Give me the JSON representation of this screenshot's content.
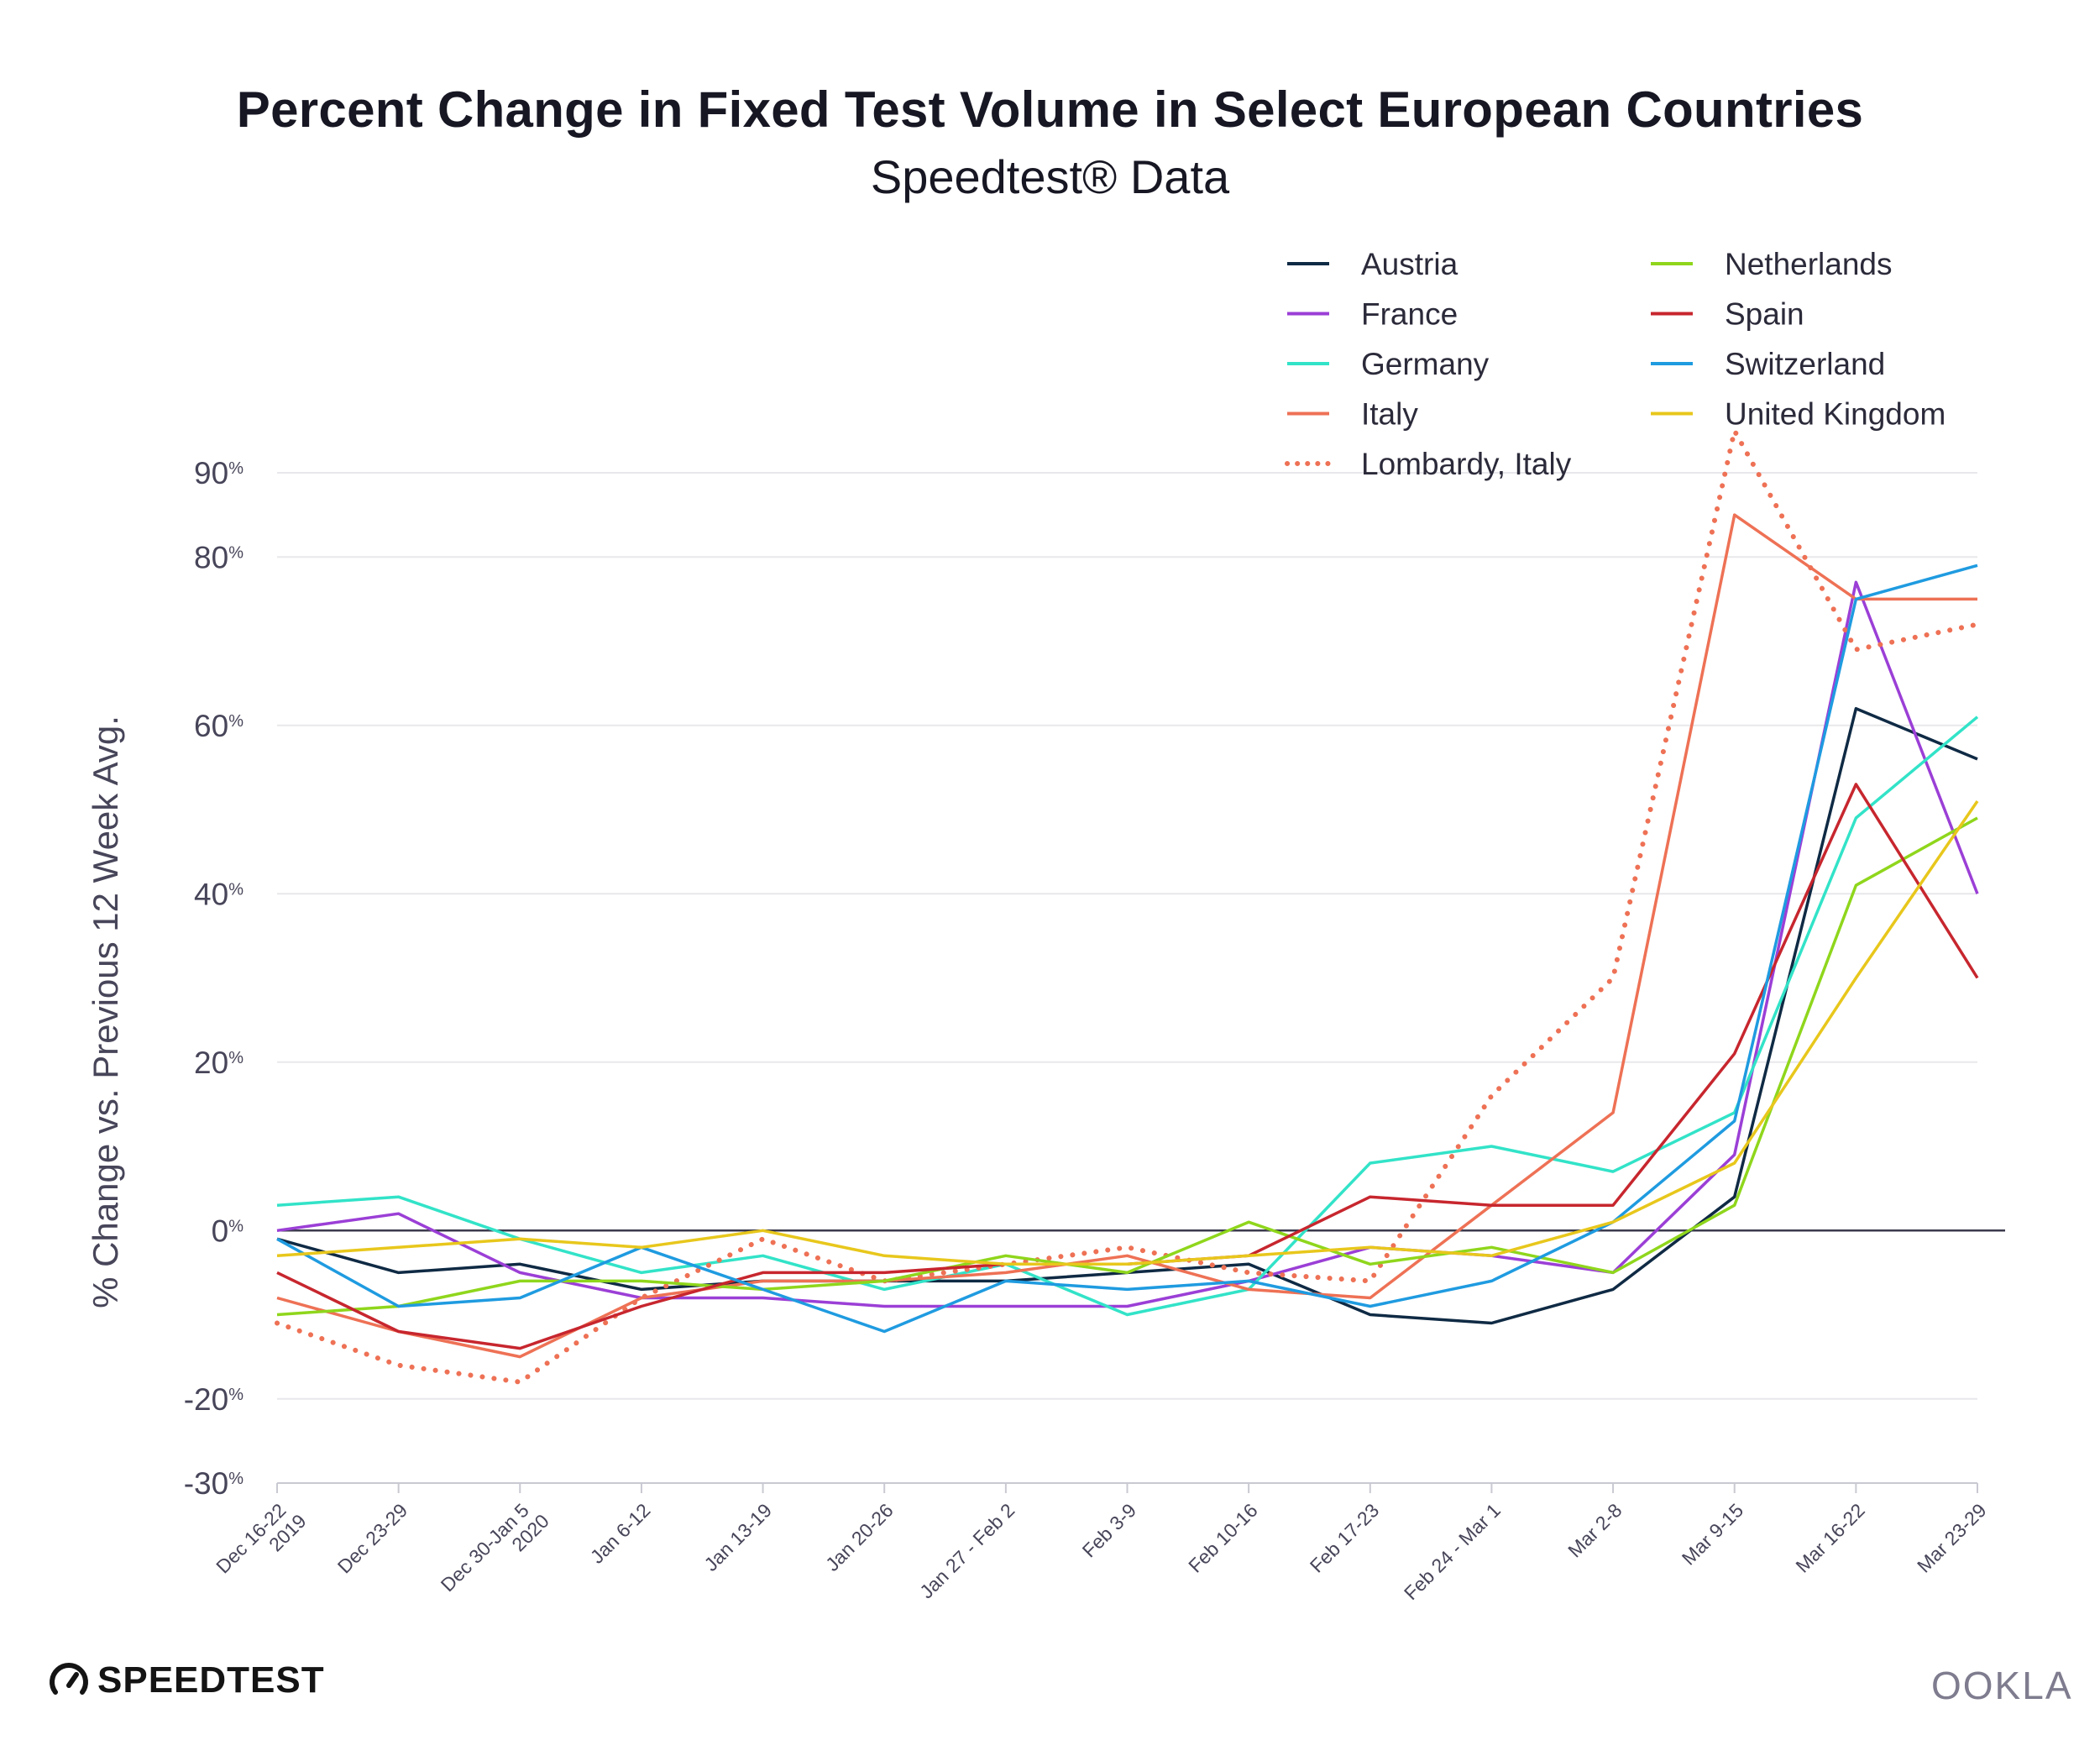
{
  "chart_data": {
    "type": "line",
    "title": "Percent Change in Fixed Test Volume in Select European Countries",
    "subtitle": "Speedtest® Data",
    "ylabel": "% Change vs. Previous 12 Week Avg.",
    "xlabel": "",
    "ylim": [
      -30,
      90
    ],
    "yticks": [
      90,
      80,
      60,
      40,
      20,
      0,
      -20,
      -30
    ],
    "grid": true,
    "legend_position": "top-right",
    "categories": [
      [
        "Dec 16-22",
        "2019"
      ],
      [
        "Dec 23-29"
      ],
      [
        "Dec 30-Jan 5",
        "2020"
      ],
      [
        "Jan 6-12"
      ],
      [
        "Jan 13-19"
      ],
      [
        "Jan 20-26"
      ],
      [
        "Jan 27 - Feb 2"
      ],
      [
        "Feb 3-9"
      ],
      [
        "Feb 10-16"
      ],
      [
        "Feb 17-23"
      ],
      [
        "Feb 24 - Mar 1"
      ],
      [
        "Mar 2-8"
      ],
      [
        "Mar 9-15"
      ],
      [
        "Mar 16-22"
      ],
      [
        "Mar 23-29"
      ]
    ],
    "series": [
      {
        "name": "Austria",
        "color": "#0f2a44",
        "style": "solid",
        "values": [
          -1,
          -5,
          -4,
          -7,
          -6,
          -6,
          -6,
          -5,
          -4,
          -10,
          -11,
          -7,
          4,
          62,
          56
        ]
      },
      {
        "name": "France",
        "color": "#9b3fd6",
        "style": "solid",
        "values": [
          0,
          2,
          -5,
          -8,
          -8,
          -9,
          -9,
          -9,
          -6,
          -2,
          -3,
          -5,
          9,
          77,
          40
        ]
      },
      {
        "name": "Germany",
        "color": "#32e3c8",
        "style": "solid",
        "values": [
          3,
          4,
          -1,
          -5,
          -3,
          -7,
          -4,
          -10,
          -7,
          8,
          10,
          7,
          14,
          49,
          61
        ]
      },
      {
        "name": "Italy",
        "color": "#ee7155",
        "style": "solid",
        "values": [
          -8,
          -12,
          -15,
          -8,
          -6,
          -6,
          -5,
          -3,
          -7,
          -8,
          3,
          14,
          85,
          75,
          75
        ]
      },
      {
        "name": "Lombardy, Italy",
        "color": "#ee7155",
        "style": "dotted",
        "values": [
          -11,
          -16,
          -18,
          -8,
          -1,
          -6,
          -4,
          -2,
          -5,
          -6,
          16,
          30,
          95,
          69,
          72
        ]
      },
      {
        "name": "Netherlands",
        "color": "#8fd61c",
        "style": "solid",
        "values": [
          -10,
          -9,
          -6,
          -6,
          -7,
          -6,
          -3,
          -5,
          1,
          -4,
          -2,
          -5,
          3,
          41,
          49
        ]
      },
      {
        "name": "Spain",
        "color": "#c7262e",
        "style": "solid",
        "values": [
          -5,
          -12,
          -14,
          -9,
          -5,
          -5,
          -4,
          -4,
          -3,
          4,
          3,
          3,
          21,
          53,
          30
        ]
      },
      {
        "name": "Switzerland",
        "color": "#1f9be0",
        "style": "solid",
        "values": [
          -1,
          -9,
          -8,
          -2,
          -7,
          -12,
          -6,
          -7,
          -6,
          -9,
          -6,
          1,
          13,
          75,
          79
        ]
      },
      {
        "name": "United Kingdom",
        "color": "#e8c71c",
        "style": "solid",
        "values": [
          -3,
          -2,
          -1,
          -2,
          0,
          -3,
          -4,
          -4,
          -3,
          -2,
          -3,
          1,
          8,
          30,
          51
        ]
      }
    ]
  },
  "brand": {
    "speedtest": "SPEEDTEST",
    "ookla": "OOKLA"
  },
  "icons": {
    "speedtest_logo": "gauge-icon"
  }
}
